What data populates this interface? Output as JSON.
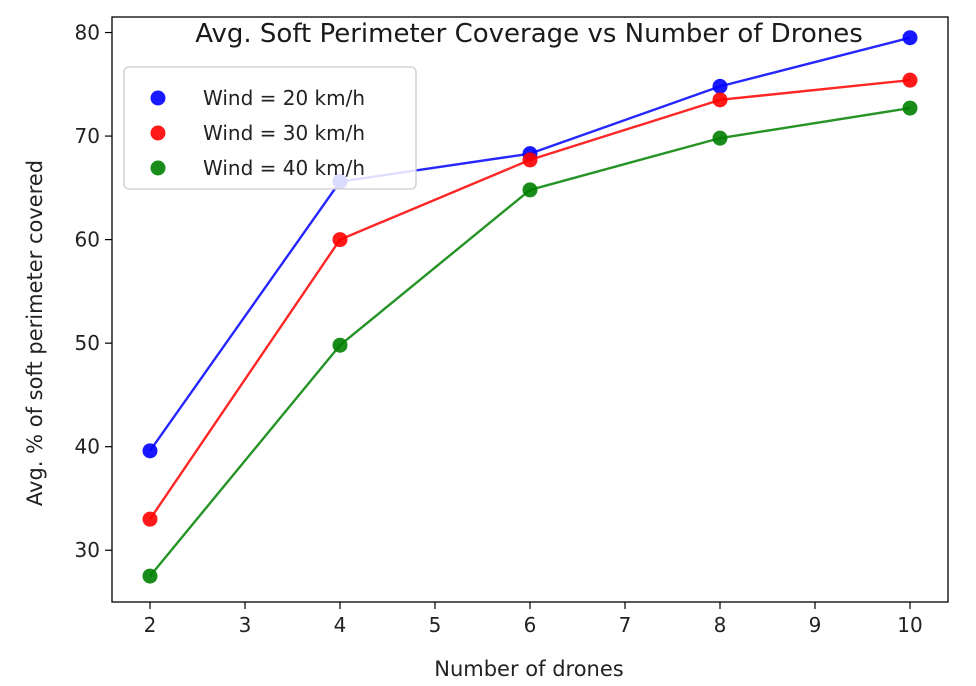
{
  "chart_data": {
    "type": "line",
    "title": "Avg. Soft Perimeter Coverage vs Number of Drones",
    "xlabel": "Number of drones",
    "ylabel": "Avg. % of soft perimeter covered",
    "x": [
      2,
      4,
      6,
      8,
      10
    ],
    "xlim": [
      1.6,
      10.4
    ],
    "ylim": [
      25,
      81.5
    ],
    "xticks": [
      "2",
      "3",
      "4",
      "5",
      "6",
      "7",
      "8",
      "9",
      "10"
    ],
    "yticks": [
      "30",
      "40",
      "50",
      "60",
      "70",
      "80"
    ],
    "grid": false,
    "legend_position": "top-left",
    "series": [
      {
        "name": "Wind = 20 km/h",
        "color": "#0000ff",
        "values": [
          39.6,
          65.6,
          68.3,
          74.8,
          79.5
        ]
      },
      {
        "name": "Wind = 30 km/h",
        "color": "#ff0000",
        "values": [
          33.0,
          60.0,
          67.7,
          73.5,
          75.4
        ]
      },
      {
        "name": "Wind = 40 km/h",
        "color": "#008000",
        "values": [
          27.5,
          49.8,
          64.8,
          69.8,
          72.7
        ]
      }
    ]
  }
}
